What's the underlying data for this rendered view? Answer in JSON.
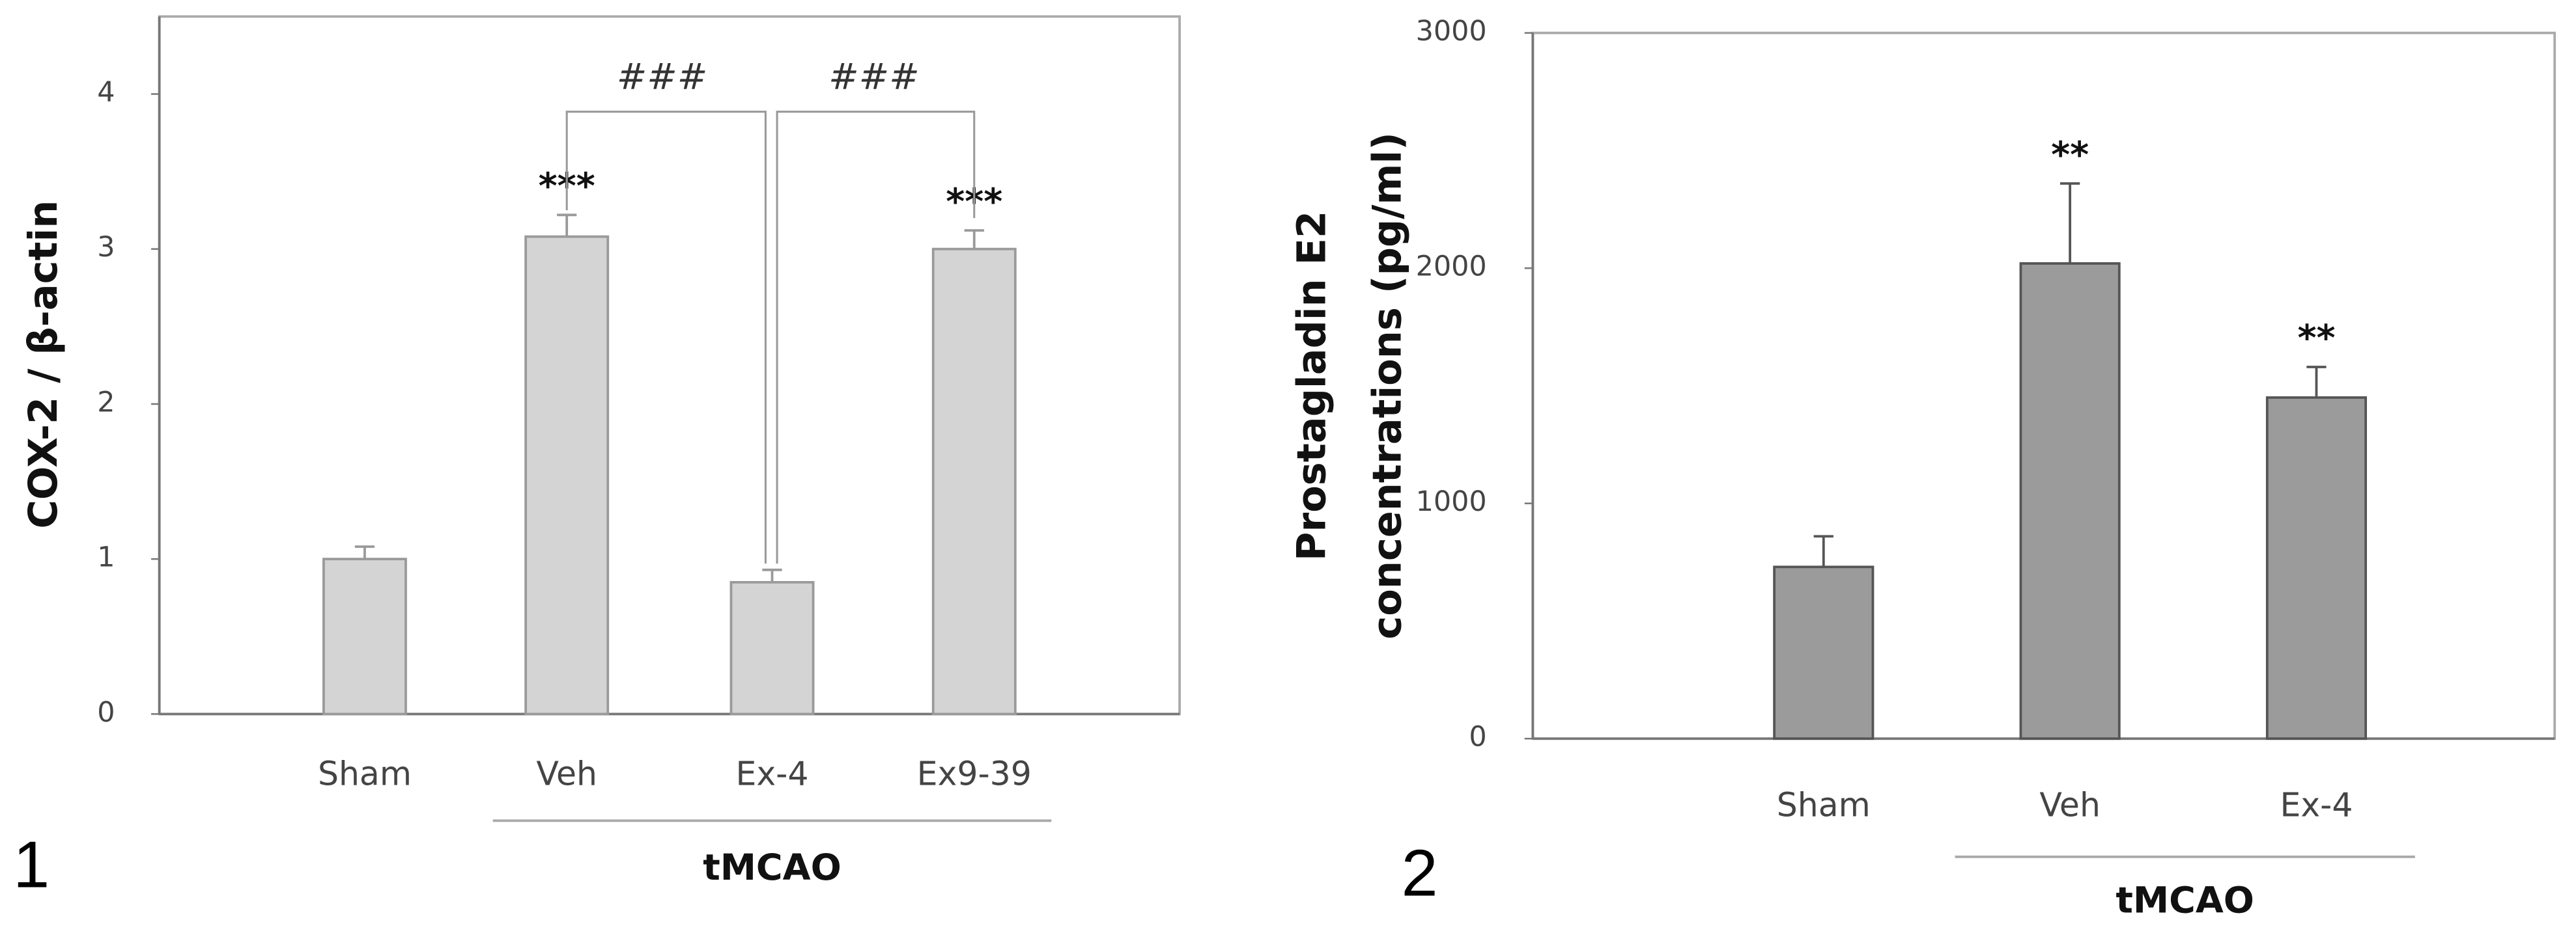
{
  "chart_data": [
    {
      "type": "bar",
      "panel": "1",
      "y_label": "COX-2 / β-actin",
      "categories": [
        "Sham",
        "Veh",
        "Ex-4",
        "Ex9-39"
      ],
      "values": [
        1.0,
        3.08,
        0.85,
        3.0
      ],
      "errors": [
        0.08,
        0.14,
        0.08,
        0.12
      ],
      "significance": [
        null,
        "***",
        null,
        "***"
      ],
      "comparisons": [
        {
          "label": "###"
        },
        {
          "label": "###"
        }
      ],
      "group": {
        "label": "tMCAO"
      },
      "color": "#d4d4d4",
      "edge": "#9a9a9a",
      "ylim": [
        0,
        4.5
      ],
      "yticks": [
        0,
        1,
        2,
        3,
        4
      ]
    },
    {
      "type": "bar",
      "panel": "2",
      "y_label": [
        "Prostagladin E2",
        "concentrations (pg/ml)"
      ],
      "categories": [
        "Sham",
        "Veh",
        "Ex-4"
      ],
      "values": [
        730,
        2020,
        1450
      ],
      "errors": [
        130,
        340,
        130
      ],
      "significance": [
        null,
        "**",
        "**"
      ],
      "group": {
        "label": "tMCAO"
      },
      "color": "#9b9b9b",
      "edge": "#555555",
      "ylim": [
        0,
        3000
      ],
      "yticks": [
        0,
        1000,
        2000,
        3000
      ]
    }
  ]
}
